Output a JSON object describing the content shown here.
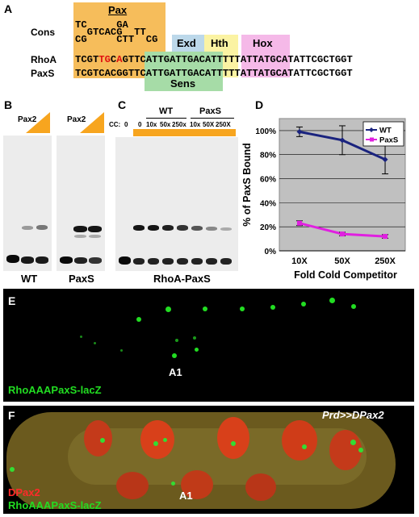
{
  "panels": {
    "A": "A",
    "B": "B",
    "C": "C",
    "D": "D",
    "E": "E",
    "F": "F"
  },
  "panelA": {
    "pax_label": "Pax",
    "cons_label": "Cons",
    "cons_top": "TC     GA",
    "cons_mid": "  GTCACG  TT",
    "cons_bot": "CG     CTT  CG",
    "cons_sup": "G",
    "exd_label": "Exd",
    "hth_label": "Hth",
    "hox_label": "Hox",
    "rhoa_label": "RhoA",
    "rhoa_seq_a": "TCGT",
    "rhoa_seq_red1": "TG",
    "rhoa_seq_b": "C",
    "rhoa_seq_red2": "A",
    "rhoa_seq_c": "GTTCATTGATTGACATTTTTATTATGCATATTCGCTGGT",
    "paxs_label": "PaxS",
    "paxs_seq": "TCGTCACGGTTCATTGATTGACATTTTTATTATGCATATTCGCTGGT",
    "sens_label": "Sens"
  },
  "panelB": {
    "pax2_left": "Pax2",
    "pax2_right": "Pax2",
    "wt_label": "WT",
    "paxs_label": "PaxS"
  },
  "panelC": {
    "cc_label": "CC:",
    "lanes": [
      "0",
      "0",
      "10x",
      "50x",
      "250x",
      "10x",
      "50X",
      "250X"
    ],
    "wt_group": "WT",
    "paxs_group": "PaxS",
    "probe_label": "RhoA-PaxS"
  },
  "chart_data": {
    "type": "line",
    "categories": [
      "10X",
      "50X",
      "250X"
    ],
    "series": [
      {
        "name": "WT",
        "values": [
          99,
          92,
          76
        ],
        "errors": [
          4,
          12,
          12
        ],
        "color": "#1a237e"
      },
      {
        "name": "PaxS",
        "values": [
          23,
          14,
          12
        ],
        "errors": [
          2,
          1.5,
          1.5
        ],
        "color": "#e020e0"
      }
    ],
    "ylabel": "% of PaxS Bound",
    "xlabel": "Fold Cold Competitor",
    "ylim": [
      0,
      110
    ],
    "yticks": [
      "0%",
      "20%",
      "40%",
      "60%",
      "80%",
      "100%"
    ],
    "grid": true,
    "legend": "top-right",
    "plot_bg": "#c0c0c0"
  },
  "panelE": {
    "label": "RhoAAAPaxS-lacZ",
    "a1": "A1",
    "green": "#22dd22"
  },
  "panelF": {
    "title": "Prd>>DPax2",
    "label_red": "DPax2",
    "label_green": "RhoAAAPaxS-lacZ",
    "a1": "A1",
    "red": "#ff2a2a",
    "green": "#22dd22"
  }
}
